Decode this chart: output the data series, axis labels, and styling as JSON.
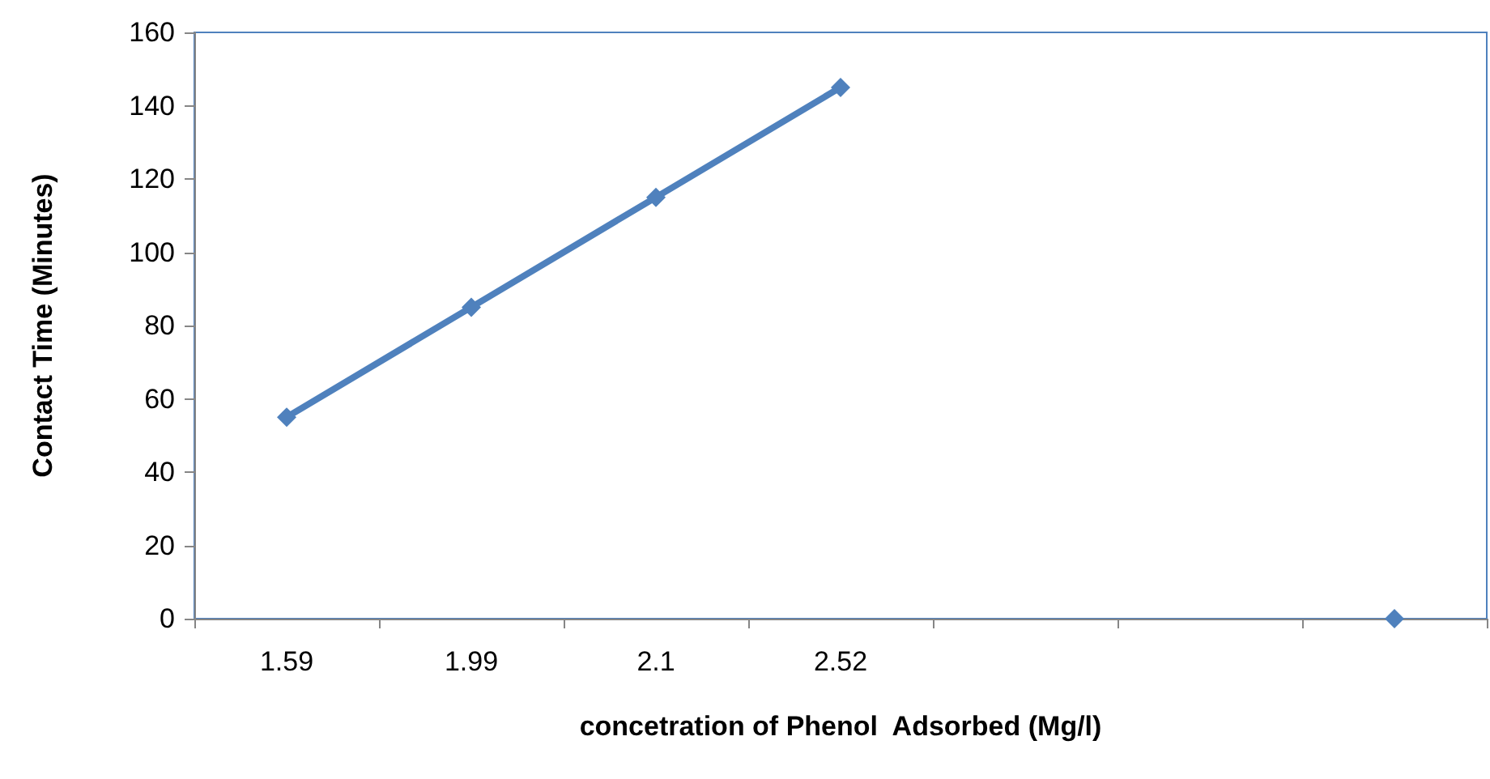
{
  "chart_data": {
    "type": "line",
    "xlabel": "concetration of Phenol  Adsorbed (Mg/l)",
    "ylabel": "Contact Time (Minutes)",
    "categories": [
      "1.59",
      "1.99",
      "2.1",
      "2.52",
      null,
      null,
      null
    ],
    "series": [
      {
        "color": "#4f81bd",
        "values": [
          55,
          85,
          115,
          145,
          null,
          null,
          0
        ]
      }
    ],
    "ylim": [
      0,
      160
    ],
    "yticks": [
      0,
      20,
      40,
      60,
      80,
      100,
      120,
      140,
      160
    ],
    "marker": "diamond",
    "line_style": "solid"
  }
}
